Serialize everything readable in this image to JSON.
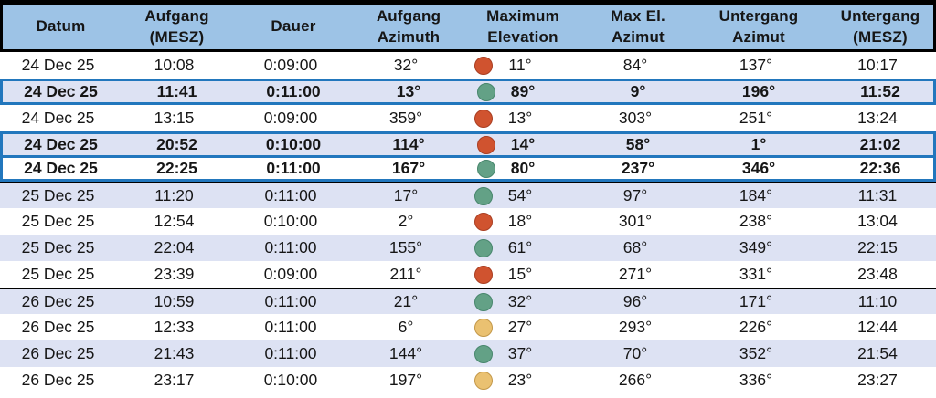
{
  "header": {
    "columns": [
      {
        "label": "Datum"
      },
      {
        "label": "Aufgang\n(MESZ)"
      },
      {
        "label": "Dauer"
      },
      {
        "label": "Aufgang\nAzimuth"
      },
      {
        "label": "Maximum\nElevation"
      },
      {
        "label": "Max El.\nAzimut"
      },
      {
        "label": "Untergang\nAzimut"
      },
      {
        "label": "Untergang\n(MESZ)"
      }
    ]
  },
  "colors": {
    "header_bg": "#9dc3e6",
    "row_shade": "#dde2f3",
    "highlight_border": "#2277bd",
    "group_divider": "#000000",
    "dot_red": "#d0532f",
    "dot_red_border": "#a93e22",
    "dot_green": "#63a186",
    "dot_green_border": "#47866c",
    "dot_yellow": "#eac171",
    "dot_yellow_border": "#c39849"
  },
  "rows": [
    {
      "datum": "24 Dec 25",
      "aufgang_mesz": "10:08",
      "dauer": "0:09:00",
      "aufgang_azimuth": "32°",
      "dot": "red",
      "max_elevation": "11°",
      "max_el_azimut": "84°",
      "untergang_azimut": "137°",
      "untergang_mesz": "10:17",
      "shaded": false,
      "bold": false,
      "highlighted": false,
      "merge_up": false,
      "group_start": false
    },
    {
      "datum": "24 Dec 25",
      "aufgang_mesz": "11:41",
      "dauer": "0:11:00",
      "aufgang_azimuth": "13°",
      "dot": "green",
      "max_elevation": "89°",
      "max_el_azimut": "9°",
      "untergang_azimut": "196°",
      "untergang_mesz": "11:52",
      "shaded": true,
      "bold": true,
      "highlighted": true,
      "merge_up": false,
      "group_start": false
    },
    {
      "datum": "24 Dec 25",
      "aufgang_mesz": "13:15",
      "dauer": "0:09:00",
      "aufgang_azimuth": "359°",
      "dot": "red",
      "max_elevation": "13°",
      "max_el_azimut": "303°",
      "untergang_azimut": "251°",
      "untergang_mesz": "13:24",
      "shaded": false,
      "bold": false,
      "highlighted": false,
      "merge_up": false,
      "group_start": false
    },
    {
      "datum": "24 Dec 25",
      "aufgang_mesz": "20:52",
      "dauer": "0:10:00",
      "aufgang_azimuth": "114°",
      "dot": "red",
      "max_elevation": "14°",
      "max_el_azimut": "58°",
      "untergang_azimut": "1°",
      "untergang_mesz": "21:02",
      "shaded": true,
      "bold": true,
      "highlighted": true,
      "merge_up": false,
      "group_start": false
    },
    {
      "datum": "24 Dec 25",
      "aufgang_mesz": "22:25",
      "dauer": "0:11:00",
      "aufgang_azimuth": "167°",
      "dot": "green",
      "max_elevation": "80°",
      "max_el_azimut": "237°",
      "untergang_azimut": "346°",
      "untergang_mesz": "22:36",
      "shaded": false,
      "bold": true,
      "highlighted": true,
      "merge_up": true,
      "group_start": false
    },
    {
      "datum": "25 Dec 25",
      "aufgang_mesz": "11:20",
      "dauer": "0:11:00",
      "aufgang_azimuth": "17°",
      "dot": "green",
      "max_elevation": "54°",
      "max_el_azimut": "97°",
      "untergang_azimut": "184°",
      "untergang_mesz": "11:31",
      "shaded": true,
      "bold": false,
      "highlighted": false,
      "merge_up": false,
      "group_start": true
    },
    {
      "datum": "25 Dec 25",
      "aufgang_mesz": "12:54",
      "dauer": "0:10:00",
      "aufgang_azimuth": "2°",
      "dot": "red",
      "max_elevation": "18°",
      "max_el_azimut": "301°",
      "untergang_azimut": "238°",
      "untergang_mesz": "13:04",
      "shaded": false,
      "bold": false,
      "highlighted": false,
      "merge_up": false,
      "group_start": false
    },
    {
      "datum": "25 Dec 25",
      "aufgang_mesz": "22:04",
      "dauer": "0:11:00",
      "aufgang_azimuth": "155°",
      "dot": "green",
      "max_elevation": "61°",
      "max_el_azimut": "68°",
      "untergang_azimut": "349°",
      "untergang_mesz": "22:15",
      "shaded": true,
      "bold": false,
      "highlighted": false,
      "merge_up": false,
      "group_start": false
    },
    {
      "datum": "25 Dec 25",
      "aufgang_mesz": "23:39",
      "dauer": "0:09:00",
      "aufgang_azimuth": "211°",
      "dot": "red",
      "max_elevation": "15°",
      "max_el_azimut": "271°",
      "untergang_azimut": "331°",
      "untergang_mesz": "23:48",
      "shaded": false,
      "bold": false,
      "highlighted": false,
      "merge_up": false,
      "group_start": false
    },
    {
      "datum": "26 Dec 25",
      "aufgang_mesz": "10:59",
      "dauer": "0:11:00",
      "aufgang_azimuth": "21°",
      "dot": "green",
      "max_elevation": "32°",
      "max_el_azimut": "96°",
      "untergang_azimut": "171°",
      "untergang_mesz": "11:10",
      "shaded": true,
      "bold": false,
      "highlighted": false,
      "merge_up": false,
      "group_start": true
    },
    {
      "datum": "26 Dec 25",
      "aufgang_mesz": "12:33",
      "dauer": "0:11:00",
      "aufgang_azimuth": "6°",
      "dot": "yellow",
      "max_elevation": "27°",
      "max_el_azimut": "293°",
      "untergang_azimut": "226°",
      "untergang_mesz": "12:44",
      "shaded": false,
      "bold": false,
      "highlighted": false,
      "merge_up": false,
      "group_start": false
    },
    {
      "datum": "26 Dec 25",
      "aufgang_mesz": "21:43",
      "dauer": "0:11:00",
      "aufgang_azimuth": "144°",
      "dot": "green",
      "max_elevation": "37°",
      "max_el_azimut": "70°",
      "untergang_azimut": "352°",
      "untergang_mesz": "21:54",
      "shaded": true,
      "bold": false,
      "highlighted": false,
      "merge_up": false,
      "group_start": false
    },
    {
      "datum": "26 Dec 25",
      "aufgang_mesz": "23:17",
      "dauer": "0:10:00",
      "aufgang_azimuth": "197°",
      "dot": "yellow",
      "max_elevation": "23°",
      "max_el_azimut": "266°",
      "untergang_azimut": "336°",
      "untergang_mesz": "23:27",
      "shaded": false,
      "bold": false,
      "highlighted": false,
      "merge_up": false,
      "group_start": false
    }
  ]
}
